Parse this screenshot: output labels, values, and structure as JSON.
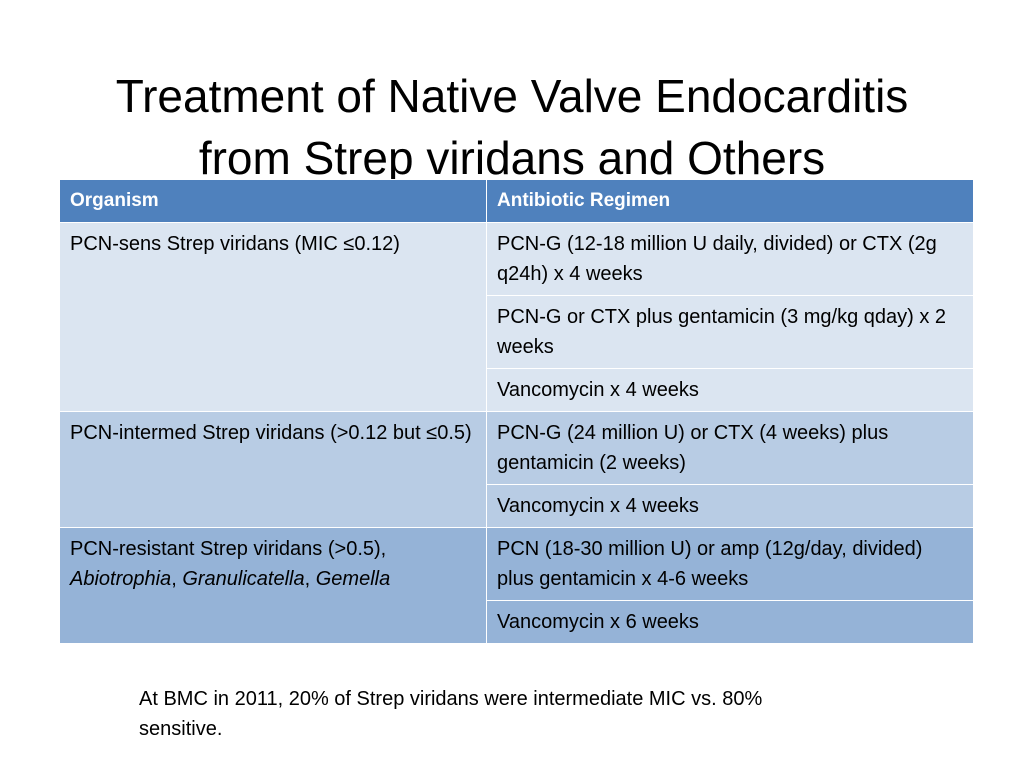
{
  "slide": {
    "title_line1": "Treatment of Native Valve Endocarditis",
    "title_line2": "from Strep viridans and Others"
  },
  "table": {
    "headers": [
      "Organism",
      "Antibiotic Regimen"
    ],
    "groups": [
      {
        "organism": "PCN-sens Strep viridans (MIC ≤0.12)",
        "regimens": [
          "PCN-G (12-18 million U daily, divided) or CTX (2g q24h) x 4 weeks",
          "PCN-G or CTX plus gentamicin (3 mg/kg qday) x 2 weeks",
          "Vancomycin x 4 weeks"
        ]
      },
      {
        "organism": "PCN-intermed Strep viridans (>0.12 but ≤0.5)",
        "regimens": [
          "PCN-G (24 million U) or CTX (4 weeks) plus gentamicin (2 weeks)",
          "Vancomycin x 4 weeks"
        ]
      },
      {
        "organism_prefix": "PCN-resistant Strep viridans (>0.5),",
        "organism_italic": [
          "Abiotrophia",
          "Granulicatella",
          "Gemella"
        ],
        "organism_separator": ", ",
        "regimens": [
          "PCN (18-30 million U) or amp (12g/day, divided) plus gentamicin x 4-6 weeks",
          "Vancomycin x 6 weeks"
        ]
      }
    ]
  },
  "footnote": "At BMC in 2011, 20% of Strep viridans were intermediate MIC vs. 80% sensitive.",
  "colors": {
    "header_bg": "#4f81bd",
    "band_1": "#dbe5f1",
    "band_2": "#b8cce4",
    "band_3": "#95b3d7"
  }
}
